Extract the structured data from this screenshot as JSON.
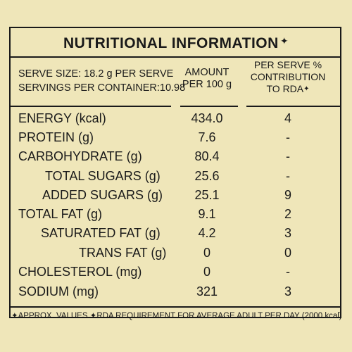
{
  "panel": {
    "title": "NUTRITIONAL INFORMATION",
    "title_mark": "✦",
    "serve_size": "SERVE SIZE: 18.2 g PER SERVE",
    "servings": "SERVINGS PER CONTAINER:10.98",
    "amount_header_1": "AMOUNT",
    "amount_header_2": "PER 100 g",
    "rda_header_1": "PER SERVE %",
    "rda_header_2": "CONTRIBUTION",
    "rda_header_3": "TO RDA",
    "rda_mark": "✦"
  },
  "rows": [
    {
      "label": "ENERGY (kcal)",
      "amount": "434.0",
      "rda": "4"
    },
    {
      "label": "PROTEIN (g)",
      "amount": "7.6",
      "rda": "-"
    },
    {
      "label": "CARBOHYDRATE (g)",
      "amount": "80.4",
      "rda": "-"
    },
    {
      "label": "TOTAL SUGARS (g)",
      "amount": "25.6",
      "rda": "-"
    },
    {
      "label": "ADDED SUGARS (g)",
      "amount": "25.1",
      "rda": "9"
    },
    {
      "label": "TOTAL FAT (g)",
      "amount": "9.1",
      "rda": "2"
    },
    {
      "label": "SATURATED FAT (g)",
      "amount": "4.2",
      "rda": "3"
    },
    {
      "label": "TRANS FAT (g)",
      "amount": "0",
      "rda": "0"
    },
    {
      "label": "CHOLESTEROL (mg)",
      "amount": "0",
      "rda": "-"
    },
    {
      "label": "SODIUM (mg)",
      "amount": "321",
      "rda": "3"
    }
  ],
  "footer": "✦APPROX. VALUES ✦RDA REQUIREMENT FOR AVERAGE ADULT PER DAY (2000 kcal)"
}
